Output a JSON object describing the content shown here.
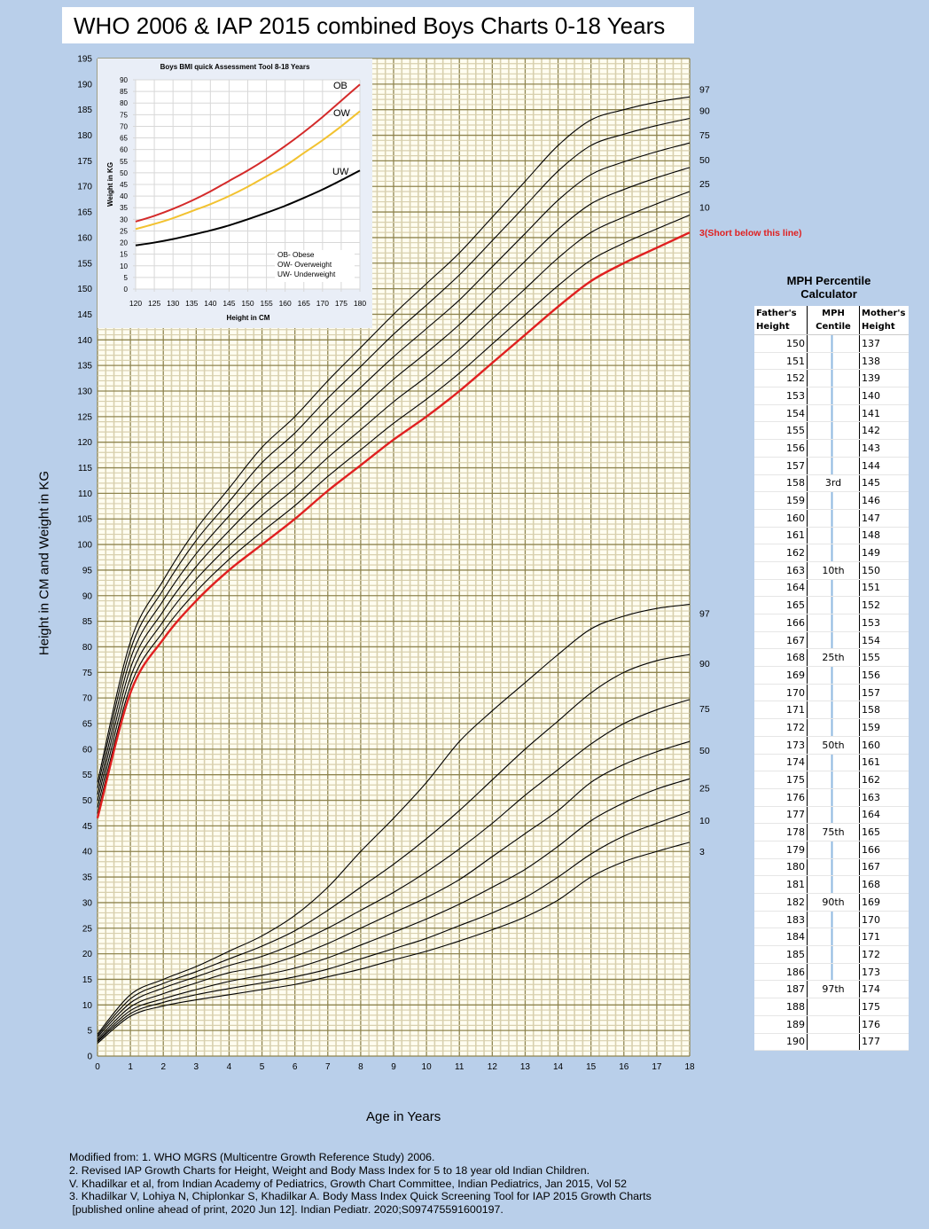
{
  "title": "WHO 2006 & IAP 2015 combined Boys Charts 0-18 Years",
  "colors": {
    "background": "#b9cfea",
    "grid_bg": "#fffdf0",
    "grid_minor": "#d8d0ae",
    "grid_major": "#8f8550",
    "third_centile": "#e02020",
    "ow": "#f2c230"
  },
  "chart_data": [
    {
      "type": "line",
      "title": "",
      "xlabel": "Age in Years",
      "ylabel": "Height in CM and Weight in KG",
      "xlim": [
        0,
        18
      ],
      "ylim": [
        0,
        195
      ],
      "x_ticks": [
        0,
        1,
        2,
        3,
        4,
        5,
        6,
        7,
        8,
        9,
        10,
        11,
        12,
        13,
        14,
        15,
        16,
        17,
        18
      ],
      "y_ticks": [
        0,
        5,
        10,
        15,
        20,
        25,
        30,
        35,
        40,
        45,
        50,
        55,
        60,
        65,
        70,
        75,
        80,
        85,
        90,
        95,
        100,
        105,
        110,
        115,
        120,
        125,
        130,
        135,
        140,
        145,
        150,
        155,
        160,
        165,
        170,
        175,
        180,
        185,
        190,
        195
      ],
      "grid": true,
      "x": [
        0,
        1,
        2,
        3,
        4,
        5,
        6,
        7,
        8,
        9,
        10,
        11,
        12,
        13,
        14,
        15,
        16,
        17,
        18
      ],
      "height_series": [
        {
          "name": "97",
          "color": "#000000",
          "values": [
            53.5,
            81,
            93,
            103,
            111,
            119,
            125,
            132,
            138.5,
            145,
            151,
            157,
            164,
            171,
            178,
            183,
            185,
            186.5,
            187.5
          ]
        },
        {
          "name": "90",
          "color": "#000000",
          "values": [
            52.4,
            79.4,
            91.2,
            100.8,
            108.4,
            116,
            121.8,
            128.6,
            134.8,
            141.1,
            146.8,
            152.7,
            159.4,
            166.2,
            173,
            178,
            180.2,
            181.9,
            183.3
          ]
        },
        {
          "name": "75",
          "color": "#000000",
          "values": [
            51.1,
            77.6,
            89.1,
            98.2,
            105.6,
            112.5,
            118.2,
            124.7,
            130.7,
            136.7,
            142.2,
            147.8,
            154.3,
            160.8,
            167.3,
            172.3,
            174.8,
            176.8,
            178.5
          ]
        },
        {
          "name": "50",
          "color": "#000000",
          "values": [
            49.9,
            75.8,
            87,
            95.7,
            102.7,
            109.1,
            114.6,
            120.8,
            126.5,
            132.3,
            137.5,
            143,
            149.2,
            155.4,
            161.6,
            166.6,
            169.4,
            171.7,
            173.7
          ]
        },
        {
          "name": "25",
          "color": "#000000",
          "values": [
            48.6,
            74,
            85,
            93.2,
            99.8,
            105.7,
            111,
            117,
            122.4,
            127.9,
            132.8,
            138.1,
            144.1,
            150,
            156,
            161,
            164,
            166.6,
            169
          ]
        },
        {
          "name": "10",
          "color": "#000000",
          "values": [
            47.4,
            72.3,
            83,
            90.8,
            97.1,
            102.5,
            107.6,
            113.3,
            118.5,
            123.7,
            128.4,
            133.5,
            139.2,
            144.9,
            150.6,
            155.6,
            158.9,
            161.7,
            164.4
          ]
        },
        {
          "name": "3(Short below this line)",
          "color": "#e02020",
          "values": [
            46.5,
            71,
            81.5,
            89,
            95,
            100,
            105,
            110.5,
            115.5,
            120.5,
            125,
            130,
            135.5,
            141,
            146.5,
            151.5,
            155,
            158,
            161
          ]
        }
      ],
      "weight_series": [
        {
          "name": "97",
          "values": [
            4.3,
            12,
            15,
            17.5,
            20.5,
            23.5,
            27.5,
            33,
            40,
            46.5,
            53.5,
            61.5,
            67.5,
            73,
            78.5,
            83.5,
            86,
            87.5,
            88.3
          ]
        },
        {
          "name": "90",
          "values": [
            4,
            11.2,
            14.2,
            16.5,
            19,
            21.5,
            24.5,
            28.5,
            33,
            37.5,
            42.5,
            48,
            54,
            60,
            65.5,
            71,
            75,
            77.3,
            78.5
          ]
        },
        {
          "name": "75",
          "values": [
            3.7,
            10.4,
            13.3,
            15.5,
            17.7,
            19.5,
            22,
            25,
            28.5,
            32,
            36,
            40.5,
            45.5,
            51,
            56,
            61,
            65,
            67.7,
            69.7
          ]
        },
        {
          "name": "50",
          "values": [
            3.3,
            9.6,
            12.2,
            14.3,
            16.3,
            17.5,
            19.5,
            22,
            25,
            28,
            31,
            34.5,
            39,
            43.5,
            48,
            53.5,
            57,
            59.5,
            61.5
          ]
        },
        {
          "name": "25",
          "values": [
            3,
            8.9,
            11.2,
            13,
            14.6,
            15.8,
            17.2,
            19.2,
            21.7,
            24.2,
            26.8,
            29.7,
            33,
            36.5,
            41,
            46,
            49.5,
            52.2,
            54.2
          ]
        },
        {
          "name": "10",
          "values": [
            2.8,
            8.3,
            10.5,
            12,
            13.2,
            14.3,
            15.5,
            17,
            19,
            21,
            23,
            25.5,
            28,
            31,
            35,
            39.5,
            43,
            45.5,
            47.8
          ]
        },
        {
          "name": "3",
          "values": [
            2.5,
            7.8,
            9.8,
            11,
            12,
            13,
            14,
            15.5,
            17,
            18.8,
            20.5,
            22.5,
            24.7,
            27.2,
            30.5,
            35,
            38,
            40,
            41.8
          ]
        }
      ]
    },
    {
      "type": "line",
      "title": "Boys BMI quick Assessment Tool 8-18 Years",
      "xlabel": "Height in CM",
      "ylabel": "Weight in KG",
      "xlim": [
        120,
        180
      ],
      "ylim": [
        0,
        90
      ],
      "x_ticks": [
        120,
        125,
        130,
        135,
        140,
        145,
        150,
        155,
        160,
        165,
        170,
        175,
        180
      ],
      "y_ticks": [
        0,
        5,
        10,
        15,
        20,
        25,
        30,
        35,
        40,
        45,
        50,
        55,
        60,
        65,
        70,
        75,
        80,
        85,
        90
      ],
      "grid": true,
      "x": [
        120,
        125,
        130,
        135,
        140,
        145,
        150,
        155,
        160,
        165,
        170,
        175,
        180
      ],
      "series": [
        {
          "name": "OB",
          "color": "#d42a2a",
          "values": [
            29,
            31.5,
            34.5,
            38,
            42,
            46.5,
            51,
            56,
            61.5,
            67.5,
            74,
            81,
            88
          ]
        },
        {
          "name": "OW",
          "color": "#f2c230",
          "values": [
            25.8,
            28,
            30.5,
            33.5,
            36.5,
            40,
            44,
            48.5,
            53,
            58.5,
            64,
            70,
            76.5
          ]
        },
        {
          "name": "UW",
          "color": "#000000",
          "values": [
            18.8,
            20,
            21.5,
            23.3,
            25.2,
            27.4,
            30,
            32.8,
            35.8,
            39.2,
            42.8,
            46.8,
            51
          ]
        }
      ],
      "legend": [
        "OB- Obese",
        "OW- Overweight",
        "UW- Underweight"
      ],
      "legend_position": "bottom-right"
    }
  ],
  "mph": {
    "title_line1": "MPH  Percentile",
    "title_line2": "Calculator",
    "headers": {
      "father": "Father's Height",
      "centile": "MPH Centile",
      "mother": "Mother's Height"
    },
    "rows": [
      {
        "father": "150",
        "centile": "",
        "mother": "137"
      },
      {
        "father": "151",
        "centile": "",
        "mother": "138"
      },
      {
        "father": "152",
        "centile": "",
        "mother": "139"
      },
      {
        "father": "153",
        "centile": "",
        "mother": "140"
      },
      {
        "father": "154",
        "centile": "",
        "mother": "141"
      },
      {
        "father": "155",
        "centile": "",
        "mother": "142"
      },
      {
        "father": "156",
        "centile": "",
        "mother": "143"
      },
      {
        "father": "157",
        "centile": "",
        "mother": "144"
      },
      {
        "father": "158",
        "centile": "3rd",
        "mother": "145"
      },
      {
        "father": "159",
        "centile": "",
        "mother": "146"
      },
      {
        "father": "160",
        "centile": "",
        "mother": "147"
      },
      {
        "father": "161",
        "centile": "",
        "mother": "148"
      },
      {
        "father": "162",
        "centile": "",
        "mother": "149"
      },
      {
        "father": "163",
        "centile": "10th",
        "mother": "150"
      },
      {
        "father": "164",
        "centile": "",
        "mother": "151"
      },
      {
        "father": "165",
        "centile": "",
        "mother": "152"
      },
      {
        "father": "166",
        "centile": "",
        "mother": "153"
      },
      {
        "father": "167",
        "centile": "",
        "mother": "154"
      },
      {
        "father": "168",
        "centile": "25th",
        "mother": "155"
      },
      {
        "father": "169",
        "centile": "",
        "mother": "156"
      },
      {
        "father": "170",
        "centile": "",
        "mother": "157"
      },
      {
        "father": "171",
        "centile": "",
        "mother": "158"
      },
      {
        "father": "172",
        "centile": "",
        "mother": "159"
      },
      {
        "father": "173",
        "centile": "50th",
        "mother": "160"
      },
      {
        "father": "174",
        "centile": "",
        "mother": "161"
      },
      {
        "father": "175",
        "centile": "",
        "mother": "162"
      },
      {
        "father": "176",
        "centile": "",
        "mother": "163"
      },
      {
        "father": "177",
        "centile": "",
        "mother": "164"
      },
      {
        "father": "178",
        "centile": "75th",
        "mother": "165"
      },
      {
        "father": "179",
        "centile": "",
        "mother": "166"
      },
      {
        "father": "180",
        "centile": "",
        "mother": "167"
      },
      {
        "father": "181",
        "centile": "",
        "mother": "168"
      },
      {
        "father": "182",
        "centile": "90th",
        "mother": "169"
      },
      {
        "father": "183",
        "centile": "",
        "mother": "170"
      },
      {
        "father": "184",
        "centile": "",
        "mother": "171"
      },
      {
        "father": "185",
        "centile": "",
        "mother": "172"
      },
      {
        "father": "186",
        "centile": "",
        "mother": "173"
      },
      {
        "father": "187",
        "centile": "97th",
        "mother": "174"
      },
      {
        "father": "188",
        "centile": "",
        "mother": "175"
      },
      {
        "father": "189",
        "centile": "",
        "mother": "176"
      },
      {
        "father": "190",
        "centile": "",
        "mother": "177"
      }
    ]
  },
  "references": "Modified from: 1. WHO MGRS (Multicentre Growth Reference Study) 2006.\n2. Revised IAP Growth Charts for Height, Weight and Body Mass Index for 5 to 18 year old Indian Children.\nV. Khadilkar et al, from Indian Academy of Pediatrics, Growth Chart Committee, Indian Pediatrics, Jan 2015, Vol 52\n3. Khadilkar V, Lohiya N, Chiplonkar S, Khadilkar A. Body Mass Index Quick Screening Tool for IAP 2015 Growth Charts\n [published online ahead of print, 2020 Jun 12]. Indian Pediatr. 2020;S097475591600197."
}
